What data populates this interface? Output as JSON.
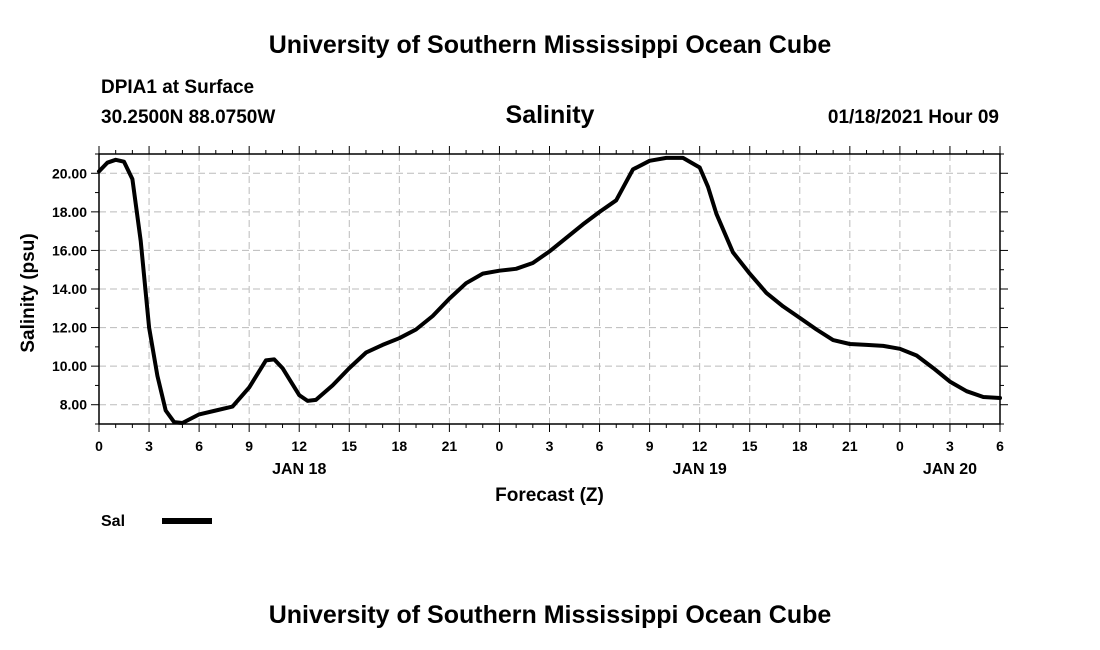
{
  "header": {
    "title": "University of Southern Mississippi Ocean Cube",
    "station": "DPIA1 at Surface",
    "coords": "30.2500N 88.0750W",
    "variable": "Salinity",
    "datetime": "01/18/2021 Hour 09"
  },
  "footer": {
    "title": "University of Southern Mississippi Ocean Cube"
  },
  "chart_data": {
    "type": "line",
    "title": "Salinity",
    "xlabel": "Forecast (Z)",
    "ylabel": "Salinity (psu)",
    "ylim": [
      7.0,
      21.0
    ],
    "xlim": [
      0,
      54
    ],
    "grid": true,
    "y_ticks": [
      "8.00",
      "10.00",
      "12.00",
      "14.00",
      "16.00",
      "18.00",
      "20.00"
    ],
    "x_ticks": [
      "0",
      "3",
      "6",
      "9",
      "12",
      "15",
      "18",
      "21",
      "0",
      "3",
      "6",
      "9",
      "12",
      "15",
      "18",
      "21",
      "0",
      "3",
      "6"
    ],
    "date_labels": [
      {
        "label": "JAN 18",
        "hour": 12
      },
      {
        "label": "JAN 19",
        "hour": 36
      },
      {
        "label": "JAN 20",
        "hour": 51
      }
    ],
    "legend": [
      {
        "name": "Sal",
        "position": "bottom-left"
      }
    ],
    "series": [
      {
        "name": "Sal",
        "x": [
          0,
          0.5,
          1,
          1.5,
          2,
          2.5,
          3,
          3.5,
          4,
          4.5,
          5,
          6,
          7,
          8,
          9,
          10,
          10.5,
          11,
          12,
          12.5,
          13,
          14,
          15,
          16,
          17,
          18,
          19,
          20,
          21,
          22,
          23,
          24,
          25,
          26,
          27,
          28,
          29,
          30,
          31,
          32,
          33,
          34,
          35,
          36,
          36.5,
          37,
          38,
          39,
          40,
          41,
          42,
          43,
          44,
          45,
          46,
          47,
          48,
          49,
          50,
          51,
          52,
          53,
          54
        ],
        "values": [
          20.1,
          20.55,
          20.7,
          20.6,
          19.7,
          16.5,
          12.0,
          9.5,
          7.7,
          7.1,
          7.05,
          7.5,
          7.7,
          7.9,
          8.9,
          10.3,
          10.35,
          9.9,
          8.5,
          8.2,
          8.25,
          9.0,
          9.9,
          10.7,
          11.1,
          11.45,
          11.9,
          12.6,
          13.5,
          14.3,
          14.8,
          14.95,
          15.05,
          15.35,
          15.95,
          16.65,
          17.35,
          18.0,
          18.6,
          20.2,
          20.65,
          20.8,
          20.8,
          20.3,
          19.3,
          17.9,
          15.9,
          14.8,
          13.8,
          13.1,
          12.5,
          11.9,
          11.35,
          11.15,
          11.1,
          11.05,
          10.9,
          10.55,
          9.9,
          9.2,
          8.7,
          8.4,
          8.35
        ]
      }
    ]
  }
}
